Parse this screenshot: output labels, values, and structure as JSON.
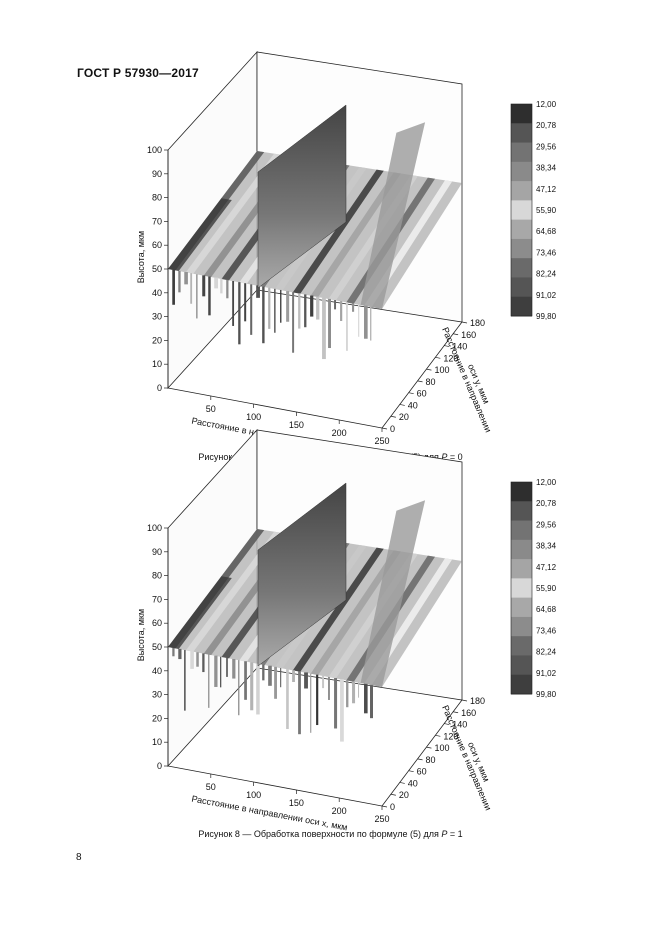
{
  "document": {
    "header": "ГОСТ Р 57930—2017",
    "page_number": "8"
  },
  "figures": [
    {
      "caption": "Рисунок 7 — Обработка поверхности по формуле (5) для P = 0",
      "caption_prefix": "Рисунок ",
      "caption_num": "7",
      "caption_mid": " — Обработка поверхности по формуле (5) для ",
      "caption_var": "P",
      "caption_suffix": " = 0"
    },
    {
      "caption": "Рисунок 8 — Обработка поверхности по формуле (5) для P = 1",
      "caption_prefix": "Рисунок ",
      "caption_num": "8",
      "caption_mid": " — Обработка поверхности по формуле (5) для ",
      "caption_var": "P",
      "caption_suffix": " = 1"
    }
  ],
  "chart_data": [
    {
      "type": "heatmap",
      "title": "",
      "zlabel": "Высота, мкм",
      "xlabel": "Расстояние в направлении оси x, мкм",
      "ylabel_line1": "Расстояние в направлении",
      "ylabel_line2": "оси y, мкм",
      "z_ticks": [
        "0",
        "10",
        "20",
        "30",
        "40",
        "50",
        "60",
        "70",
        "80",
        "90",
        "100"
      ],
      "x_ticks": [
        "50",
        "100",
        "150",
        "200",
        "250"
      ],
      "y_ticks": [
        "0",
        "20",
        "40",
        "60",
        "80",
        "100",
        "120",
        "140",
        "160",
        "180"
      ],
      "zlim": [
        0,
        100
      ],
      "xlim": [
        0,
        250
      ],
      "ylim": [
        0,
        180
      ],
      "colorbar_levels": [
        "12,00",
        "20,78",
        "29,56",
        "38,34",
        "47,12",
        "55,90",
        "64,68",
        "73,46",
        "82,24",
        "91,02",
        "99,80"
      ],
      "colorbar_colors": [
        "#2e2e2e",
        "#555555",
        "#737373",
        "#8a8a8a",
        "#a5a5a5",
        "#d8d8d8",
        "#a8a8a8",
        "#8c8c8c",
        "#6a6a6a",
        "#555555",
        "#3e3e3e"
      ]
    },
    {
      "type": "heatmap",
      "title": "",
      "zlabel": "Высота, мкм",
      "xlabel": "Расстояние в направлении оси x, мкм",
      "ylabel_line1": "Расстояние в направлении",
      "ylabel_line2": "оси y, мкм",
      "z_ticks": [
        "0",
        "10",
        "20",
        "30",
        "40",
        "50",
        "60",
        "70",
        "80",
        "90",
        "100"
      ],
      "x_ticks": [
        "50",
        "100",
        "150",
        "200",
        "250"
      ],
      "y_ticks": [
        "0",
        "20",
        "40",
        "60",
        "80",
        "100",
        "120",
        "140",
        "160",
        "180"
      ],
      "zlim": [
        0,
        100
      ],
      "xlim": [
        0,
        250
      ],
      "ylim": [
        0,
        180
      ],
      "colorbar_levels": [
        "12,00",
        "20,78",
        "29,56",
        "38,34",
        "47,12",
        "55,90",
        "64,68",
        "73,46",
        "82,24",
        "91,02",
        "99,80"
      ],
      "colorbar_colors": [
        "#2e2e2e",
        "#555555",
        "#737373",
        "#8a8a8a",
        "#a5a5a5",
        "#d8d8d8",
        "#a8a8a8",
        "#8c8c8c",
        "#6a6a6a",
        "#555555",
        "#3e3e3e"
      ]
    }
  ]
}
